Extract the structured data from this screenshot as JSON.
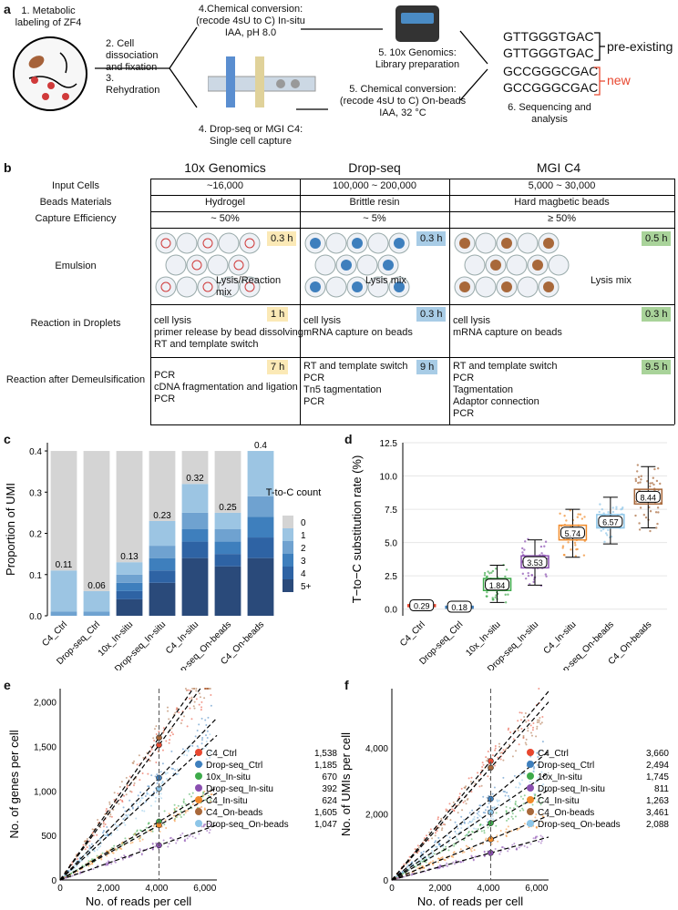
{
  "panels": {
    "a": "a",
    "b": "b",
    "c": "c",
    "d": "d",
    "e": "e",
    "f": "f"
  },
  "panel_a": {
    "step1": "1. Metabolic labeling of ZF4",
    "step2": "2. Cell dissociation and fixation",
    "step3": "3. Rehydration",
    "step4a": "4.Chemical conversion: (recode 4sU to C) In-situ IAA, pH 8.0",
    "step4b": "4. Drop-seq or MGI C4: Single cell capture",
    "step5a": "5. 10x Genomics: Library preparation",
    "step5b": "5. Chemical conversion: (recode 4sU to C) On-beads IAA, 32 °C",
    "step6": "6. Sequencing and analysis",
    "seq_pre1": "GTTGGGTGAC",
    "seq_pre2": "GTTGGGTGAC",
    "seq_new1": "GCCGGGCGAC",
    "seq_new2": "GCCGGGCGAC",
    "label_pre": "pre-existing",
    "label_new": "new"
  },
  "panel_b": {
    "platforms": [
      "10x Genomics",
      "Drop-seq",
      "MGI C4"
    ],
    "rows": [
      {
        "label": "Input Cells",
        "values": [
          "~16,000",
          "100,000 ~ 200,000",
          "5,000 ~ 30,000"
        ]
      },
      {
        "label": "Beads Materials",
        "values": [
          "Hydrogel",
          "Brittle resin",
          "Hard magbetic beads"
        ]
      },
      {
        "label": "Capture Efficiency",
        "values": [
          "~ 50%",
          "~ 5%",
          "≥ 50%"
        ]
      }
    ],
    "emulsion_label": "Emulsion",
    "emulsion_times": [
      "0.3 h",
      "0.3 h",
      "0.5 h"
    ],
    "emulsion_notes": [
      "Lysis/Reaction mix",
      "Lysis mix",
      "Lysis mix"
    ],
    "droplets_label": "Reaction in Droplets",
    "droplets_times": [
      "1 h",
      "0.3 h",
      "0.3 h"
    ],
    "droplets_text": [
      [
        "cell lysis",
        "primer release by bead dissolving",
        "RT and template switch"
      ],
      [
        "cell lysis",
        "mRNA capture on beads"
      ],
      [
        "cell lysis",
        "mRNA capture on beads"
      ]
    ],
    "demul_label": "Reaction after Demeulsification",
    "demul_times": [
      "7 h",
      "9 h",
      "9.5 h"
    ],
    "demul_text": [
      [
        "PCR",
        "cDNA fragmentation and ligation",
        "PCR"
      ],
      [
        "RT and template switch",
        "PCR",
        "Tn5 tagmentation",
        "PCR"
      ],
      [
        "RT and template switch",
        "PCR",
        "Tagmentation",
        "Adaptor connection",
        "PCR"
      ]
    ],
    "colors": [
      "#fbe9b6",
      "#a8cce6",
      "#a9d39a"
    ]
  },
  "chart_data": [
    {
      "type": "bar",
      "panel": "c",
      "ylabel": "Proportion of UMI",
      "ylim": [
        0,
        0.42
      ],
      "yticks": [
        "0.0",
        "0.1",
        "0.2",
        "0.3",
        "0.4"
      ],
      "categories": [
        "C4_Ctrl",
        "Drop-seq_Ctrl",
        "10x_In-situ",
        "Drop-seq_In-situ",
        "C4_In-situ",
        "Drop-seq_On-beads",
        "C4_On-beads"
      ],
      "totals": [
        "0.11",
        "0.06",
        "0.13",
        "0.23",
        "0.32",
        "0.25",
        "0.4"
      ],
      "legend_title": "T-to-C count",
      "series": [
        {
          "name": "5+",
          "color": "#2a4a7a",
          "values": [
            0.0,
            0.0,
            0.04,
            0.08,
            0.14,
            0.12,
            0.14
          ]
        },
        {
          "name": "4",
          "color": "#2e63a4",
          "values": [
            0.0,
            0.0,
            0.02,
            0.03,
            0.04,
            0.03,
            0.05
          ]
        },
        {
          "name": "3",
          "color": "#3e7fbd",
          "values": [
            0.0,
            0.0,
            0.02,
            0.03,
            0.03,
            0.03,
            0.05
          ]
        },
        {
          "name": "2",
          "color": "#6fa2d0",
          "values": [
            0.01,
            0.01,
            0.02,
            0.03,
            0.04,
            0.03,
            0.05
          ]
        },
        {
          "name": "1",
          "color": "#9cc5e3",
          "values": [
            0.1,
            0.05,
            0.03,
            0.06,
            0.07,
            0.04,
            0.11
          ]
        },
        {
          "name": "0",
          "color": "#d4d4d4",
          "values": [
            0.29,
            0.34,
            0.27,
            0.17,
            0.08,
            0.15,
            0.0
          ]
        }
      ]
    },
    {
      "type": "scatter",
      "panel": "d",
      "ylabel": "T−to−C substitution rate (%)",
      "ylim": [
        -0.5,
        12.5
      ],
      "yticks": [
        "0.0",
        "2.5",
        "5.0",
        "7.5",
        "10.0",
        "12.5"
      ],
      "categories": [
        "C4_Ctrl",
        "Drop-seq_Ctrl",
        "10x_In-situ",
        "Drop-seq_In-situ",
        "C4_In-situ",
        "Drop-seq_On-beads",
        "C4_On-beads"
      ],
      "medians": [
        0.29,
        0.18,
        1.84,
        3.53,
        5.74,
        6.57,
        8.44
      ],
      "median_labels": [
        "0.29",
        "0.18",
        "1.84",
        "3.53",
        "5.74",
        "6.57",
        "8.44"
      ],
      "q1": [
        0.25,
        0.15,
        1.4,
        3.1,
        5.2,
        6.1,
        7.9
      ],
      "q3": [
        0.33,
        0.21,
        2.3,
        4.0,
        6.3,
        7.1,
        9.0
      ],
      "whisk_lo": [
        0.2,
        0.1,
        0.5,
        1.8,
        3.9,
        4.9,
        6.1
      ],
      "whisk_hi": [
        0.38,
        0.25,
        3.3,
        5.2,
        7.5,
        8.4,
        10.7
      ],
      "colors": [
        "#e8472f",
        "#3e7fbd",
        "#3daa4a",
        "#8a4fb0",
        "#f08a2a",
        "#8ec6e8",
        "#a8683a"
      ]
    },
    {
      "type": "scatter",
      "panel": "e",
      "xlabel": "No. of reads per cell",
      "ylabel": "No. of genes per cell",
      "xlim": [
        0,
        6500
      ],
      "ylim": [
        0,
        2150
      ],
      "xticks": [
        "0",
        "2,000",
        "4,000",
        "6,000"
      ],
      "yticks": [
        "0",
        "500",
        "1,000",
        "1,500",
        "2,000"
      ],
      "series": [
        {
          "name": "C4_Ctrl",
          "value": "1,538",
          "color": "#e8472f",
          "slope": 0.37
        },
        {
          "name": "Drop-seq_Ctrl",
          "value": "1,185",
          "color": "#3e7fbd",
          "slope": 0.28
        },
        {
          "name": "10x_In-situ",
          "value": "670",
          "color": "#3daa4a",
          "slope": 0.16
        },
        {
          "name": "Drop-seq_In-situ",
          "value": "392",
          "color": "#8a4fb0",
          "slope": 0.095
        },
        {
          "name": "C4_In-situ",
          "value": "624",
          "color": "#f08a2a",
          "slope": 0.15
        },
        {
          "name": "C4_On-beads",
          "value": "1,605",
          "color": "#a8683a",
          "slope": 0.39
        },
        {
          "name": "Drop-seq_On-beads",
          "value": "1,047",
          "color": "#8ec6e8",
          "slope": 0.25
        }
      ]
    },
    {
      "type": "scatter",
      "panel": "f",
      "xlabel": "No. of reads per cell",
      "ylabel": "No. of UMIs per cell",
      "xlim": [
        0,
        6500
      ],
      "ylim": [
        0,
        5800
      ],
      "xticks": [
        "0",
        "2,000",
        "4,000",
        "6,000"
      ],
      "yticks": [
        "0",
        "2,000",
        "4,000"
      ],
      "series": [
        {
          "name": "C4_Ctrl",
          "value": "3,660",
          "color": "#e8472f",
          "slope": 0.88
        },
        {
          "name": "Drop-seq_Ctrl",
          "value": "2,494",
          "color": "#3e7fbd",
          "slope": 0.6
        },
        {
          "name": "10x_In-situ",
          "value": "1,745",
          "color": "#3daa4a",
          "slope": 0.42
        },
        {
          "name": "Drop-seq_In-situ",
          "value": "811",
          "color": "#8a4fb0",
          "slope": 0.2
        },
        {
          "name": "C4_In-situ",
          "value": "1,263",
          "color": "#f08a2a",
          "slope": 0.3
        },
        {
          "name": "C4_On-beads",
          "value": "3,461",
          "color": "#a8683a",
          "slope": 0.83
        },
        {
          "name": "Drop-seq_On-beads",
          "value": "2,088",
          "color": "#8ec6e8",
          "slope": 0.5
        }
      ]
    }
  ]
}
